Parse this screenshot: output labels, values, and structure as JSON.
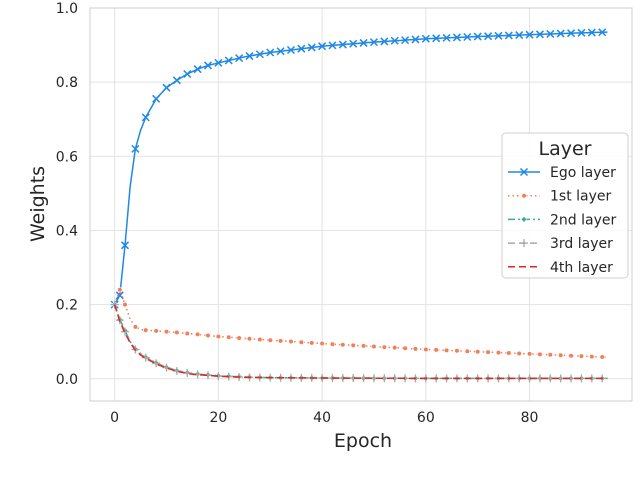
{
  "chart_data": {
    "type": "line",
    "xlabel": "Epoch",
    "ylabel": "Weights",
    "xlim": [
      -4.75,
      99.75
    ],
    "ylim": [
      -0.06,
      1.0
    ],
    "xticks": [
      "0",
      "20",
      "40",
      "60",
      "80"
    ],
    "xtick_values": [
      0,
      20,
      40,
      60,
      80
    ],
    "yticks": [
      "0.0",
      "0.2",
      "0.4",
      "0.6",
      "0.8",
      "1.0"
    ],
    "ytick_values": [
      0.0,
      0.2,
      0.4,
      0.6,
      0.8,
      1.0
    ],
    "grid": true,
    "legend": {
      "title": "Layer",
      "placement": "center-right"
    },
    "series": [
      {
        "name": "Ego layer",
        "color": "#1e88e5",
        "marker": "x",
        "linestyle": "solid",
        "x": [
          0,
          1,
          2,
          3,
          4,
          5,
          6,
          7,
          8,
          9,
          10,
          12,
          14,
          16,
          18,
          20,
          25,
          30,
          40,
          50,
          60,
          70,
          80,
          90,
          95
        ],
        "y": [
          0.2,
          0.225,
          0.36,
          0.52,
          0.62,
          0.67,
          0.705,
          0.73,
          0.755,
          0.77,
          0.785,
          0.805,
          0.822,
          0.835,
          0.845,
          0.852,
          0.868,
          0.88,
          0.897,
          0.908,
          0.917,
          0.923,
          0.928,
          0.933,
          0.935
        ]
      },
      {
        "name": "1st layer",
        "color": "#f07f5a",
        "marker": "o",
        "linestyle": "dotted",
        "x": [
          0,
          1,
          2,
          3,
          4,
          5,
          6,
          8,
          10,
          15,
          20,
          30,
          40,
          50,
          60,
          70,
          80,
          90,
          95
        ],
        "y": [
          0.2,
          0.24,
          0.2,
          0.16,
          0.14,
          0.133,
          0.131,
          0.129,
          0.127,
          0.121,
          0.114,
          0.104,
          0.095,
          0.087,
          0.079,
          0.073,
          0.067,
          0.061,
          0.058
        ]
      },
      {
        "name": "2nd layer",
        "color": "#3aaa9c",
        "marker": "D",
        "linestyle": "dashdot",
        "x": [
          0,
          1,
          2,
          3,
          4,
          5,
          6,
          8,
          10,
          12,
          15,
          20,
          25,
          30,
          40,
          60,
          80,
          95
        ],
        "y": [
          0.2,
          0.16,
          0.13,
          0.1,
          0.08,
          0.068,
          0.058,
          0.043,
          0.031,
          0.022,
          0.014,
          0.008,
          0.005,
          0.003,
          0.002,
          0.001,
          0.001,
          0.001
        ]
      },
      {
        "name": "3rd layer",
        "color": "#a8a8a8",
        "marker": "+",
        "linestyle": "dashed",
        "x": [
          0,
          1,
          2,
          3,
          4,
          5,
          6,
          8,
          10,
          12,
          15,
          20,
          25,
          30,
          40,
          60,
          80,
          95
        ],
        "y": [
          0.2,
          0.158,
          0.127,
          0.099,
          0.079,
          0.066,
          0.057,
          0.042,
          0.03,
          0.021,
          0.013,
          0.007,
          0.004,
          0.003,
          0.002,
          0.001,
          0.001,
          0.001
        ]
      },
      {
        "name": "4th layer",
        "color": "#e0251b",
        "marker": "none",
        "linestyle": "dashed",
        "x": [
          0,
          1,
          2,
          3,
          4,
          5,
          6,
          8,
          10,
          12,
          15,
          20,
          25,
          30,
          40,
          60,
          80,
          95
        ],
        "y": [
          0.2,
          0.155,
          0.123,
          0.097,
          0.077,
          0.064,
          0.055,
          0.04,
          0.029,
          0.02,
          0.012,
          0.007,
          0.004,
          0.003,
          0.002,
          0.001,
          0.001,
          0.001
        ]
      }
    ]
  }
}
